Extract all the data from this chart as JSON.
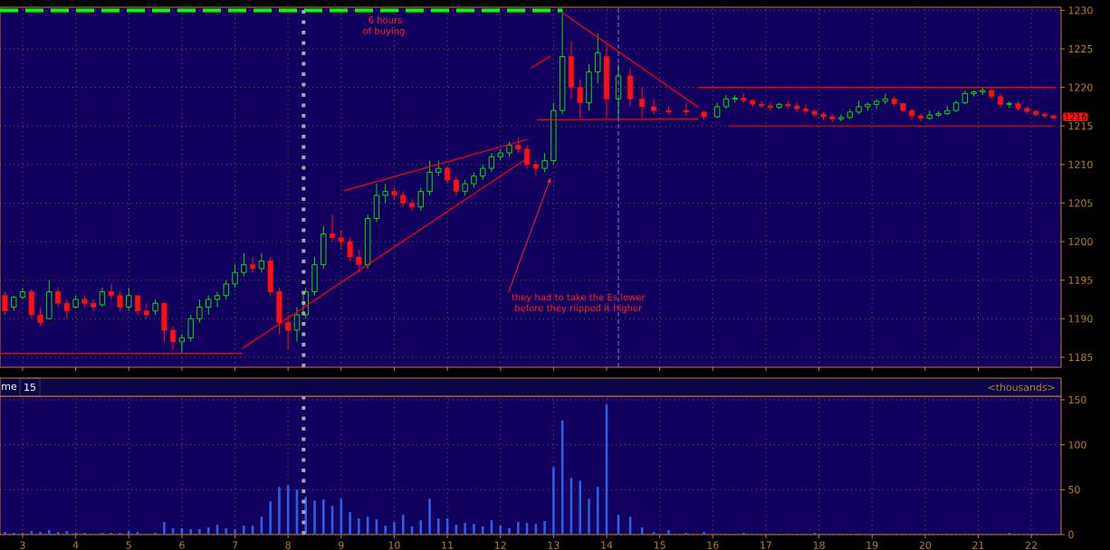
{
  "chart_data": [
    {
      "type": "candlestick",
      "x": [
        2.667,
        2.833,
        3,
        3.167,
        3.333,
        3.5,
        3.667,
        3.833,
        4,
        4.167,
        4.333,
        4.5,
        4.667,
        4.833,
        5,
        5.167,
        5.333,
        5.5,
        5.667,
        5.833,
        6,
        6.167,
        6.333,
        6.5,
        6.667,
        6.833,
        7,
        7.167,
        7.333,
        7.5,
        7.667,
        7.833,
        8,
        8.167,
        8.333,
        8.5,
        8.667,
        8.833,
        9,
        9.167,
        9.333,
        9.5,
        9.667,
        9.833,
        10,
        10.167,
        10.333,
        10.5,
        10.667,
        10.833,
        11,
        11.167,
        11.333,
        11.5,
        11.667,
        11.833,
        12,
        12.167,
        12.333,
        12.5,
        12.667,
        12.833,
        13,
        13.167,
        13.333,
        13.5,
        13.667,
        13.833,
        14,
        14.222,
        14.444,
        14.667,
        14.889,
        15.167,
        15.5,
        15.833,
        16.083,
        16.25,
        16.417,
        16.583,
        16.75,
        16.917,
        17.083,
        17.25,
        17.417,
        17.583,
        17.75,
        17.917,
        18.083,
        18.25,
        18.417,
        18.583,
        18.75,
        18.917,
        19.083,
        19.25,
        19.417,
        19.583,
        19.75,
        19.917,
        20.083,
        20.25,
        20.417,
        20.583,
        20.75,
        20.917,
        21.083,
        21.25,
        21.417,
        21.583,
        21.75,
        21.917,
        22.083,
        22.25,
        22.417
      ],
      "ohlc": [
        [
          1193,
          1193.5,
          1190.5,
          1191
        ],
        [
          1191.5,
          1193,
          1191,
          1192.8
        ],
        [
          1192.8,
          1194,
          1192.5,
          1193.5
        ],
        [
          1193.5,
          1193.8,
          1190,
          1190.5
        ],
        [
          1190.5,
          1191.5,
          1189,
          1189.5
        ],
        [
          1190,
          1195,
          1190,
          1193.5
        ],
        [
          1193.5,
          1194,
          1191.5,
          1192
        ],
        [
          1192,
          1192.5,
          1190,
          1191
        ],
        [
          1191.5,
          1193,
          1191.3,
          1192.5
        ],
        [
          1192.5,
          1193,
          1191.5,
          1192
        ],
        [
          1192,
          1192.5,
          1191,
          1191.5
        ],
        [
          1191.8,
          1194,
          1191.5,
          1193.5
        ],
        [
          1193.5,
          1194.5,
          1192.5,
          1193
        ],
        [
          1193,
          1193.5,
          1191,
          1191.5
        ],
        [
          1191.5,
          1194,
          1191,
          1193
        ],
        [
          1193,
          1193,
          1190.5,
          1191
        ],
        [
          1191,
          1192,
          1190,
          1190.5
        ],
        [
          1191,
          1192.5,
          1190.5,
          1192
        ],
        [
          1192,
          1192,
          1187,
          1188.5
        ],
        [
          1188.5,
          1189,
          1186,
          1187
        ],
        [
          1187,
          1188,
          1185.5,
          1187.5
        ],
        [
          1187.5,
          1190.5,
          1187,
          1190
        ],
        [
          1190,
          1192.5,
          1189.5,
          1191.5
        ],
        [
          1191.5,
          1193,
          1190.5,
          1192.5
        ],
        [
          1192.5,
          1193.5,
          1191.5,
          1193
        ],
        [
          1193,
          1195,
          1192.5,
          1194.5
        ],
        [
          1194.5,
          1197,
          1194,
          1196
        ],
        [
          1196,
          1198.5,
          1195.5,
          1197
        ],
        [
          1197,
          1198,
          1196,
          1196.5
        ],
        [
          1196.5,
          1198.5,
          1196,
          1197.5
        ],
        [
          1197.5,
          1198,
          1193,
          1193.5
        ],
        [
          1193.5,
          1194,
          1188,
          1189.5
        ],
        [
          1189.5,
          1190.5,
          1186,
          1188.5
        ],
        [
          1188.5,
          1191.5,
          1187,
          1190.5
        ],
        [
          1190.5,
          1194,
          1190,
          1193.5
        ],
        [
          1193.5,
          1198,
          1193,
          1197
        ],
        [
          1197,
          1202,
          1196.5,
          1201
        ],
        [
          1201,
          1203.5,
          1200,
          1200.5
        ],
        [
          1200.5,
          1201.5,
          1199,
          1200
        ],
        [
          1200,
          1200.5,
          1197.5,
          1198
        ],
        [
          1198,
          1199,
          1196,
          1197
        ],
        [
          1197,
          1203.5,
          1196.5,
          1203
        ],
        [
          1203,
          1207.5,
          1202.5,
          1206
        ],
        [
          1206,
          1207.5,
          1205,
          1206.5
        ],
        [
          1206.5,
          1207,
          1205.5,
          1206
        ],
        [
          1206,
          1206.5,
          1204.5,
          1205
        ],
        [
          1205,
          1205.5,
          1204,
          1204.5
        ],
        [
          1204.5,
          1207,
          1204,
          1206.5
        ],
        [
          1206.5,
          1210.5,
          1206,
          1209
        ],
        [
          1209,
          1210.5,
          1208.5,
          1209.5
        ],
        [
          1209.5,
          1209.8,
          1207.5,
          1208
        ],
        [
          1208,
          1208.5,
          1206,
          1206.5
        ],
        [
          1206.5,
          1208,
          1206,
          1207.5
        ],
        [
          1207.5,
          1209,
          1207,
          1208.5
        ],
        [
          1208.5,
          1210,
          1208,
          1209.5
        ],
        [
          1209.5,
          1211.5,
          1209,
          1211
        ],
        [
          1211,
          1212,
          1210.5,
          1211.5
        ],
        [
          1211.5,
          1213,
          1211,
          1212.5
        ],
        [
          1212.5,
          1213.5,
          1211.5,
          1212
        ],
        [
          1212,
          1212.5,
          1209.5,
          1210
        ],
        [
          1210,
          1210.5,
          1208.5,
          1209.5
        ],
        [
          1209.5,
          1211.5,
          1209,
          1210.5
        ],
        [
          1210.5,
          1218,
          1210,
          1217
        ],
        [
          1217,
          1230,
          1216.5,
          1224
        ],
        [
          1224,
          1226,
          1218.5,
          1220
        ],
        [
          1220,
          1221,
          1216,
          1218
        ],
        [
          1218,
          1223,
          1217,
          1222
        ],
        [
          1222,
          1227,
          1220.5,
          1224.5
        ],
        [
          1224,
          1225.5,
          1216,
          1218.5
        ],
        [
          1218.5,
          1223,
          1216,
          1221.5
        ],
        [
          1221.5,
          1222.5,
          1217.5,
          1218.5
        ],
        [
          1218.5,
          1220,
          1216,
          1217.5
        ],
        [
          1217.5,
          1218.5,
          1216.5,
          1217
        ],
        [
          1217,
          1217.5,
          1216.5,
          1216.8
        ],
        [
          1217,
          1218,
          1216.3,
          1216.8
        ],
        [
          1216.8,
          1217,
          1215.8,
          1216.2
        ],
        [
          1216.2,
          1218,
          1216,
          1217.5
        ],
        [
          1217.5,
          1219,
          1217.2,
          1218.5
        ],
        [
          1218.5,
          1219,
          1218,
          1218.6
        ],
        [
          1218.6,
          1219.2,
          1218,
          1218.3
        ],
        [
          1218.3,
          1218.5,
          1217.5,
          1217.8
        ],
        [
          1217.8,
          1218.2,
          1217.3,
          1217.6
        ],
        [
          1217.6,
          1218,
          1217,
          1217.4
        ],
        [
          1217.4,
          1218,
          1217.2,
          1217.8
        ],
        [
          1217.8,
          1218.3,
          1217.3,
          1217.6
        ],
        [
          1217.6,
          1218,
          1216.8,
          1217.2
        ],
        [
          1217.2,
          1217.8,
          1216.6,
          1216.9
        ],
        [
          1216.9,
          1217.2,
          1216.2,
          1216.5
        ],
        [
          1216.5,
          1216.8,
          1215.8,
          1216.2
        ],
        [
          1216.2,
          1216.5,
          1215.5,
          1215.9
        ],
        [
          1215.9,
          1216.5,
          1215.6,
          1216.1
        ],
        [
          1216.1,
          1217.2,
          1215.9,
          1216.8
        ],
        [
          1216.8,
          1218.3,
          1216.5,
          1217.5
        ],
        [
          1217.5,
          1218,
          1217,
          1217.8
        ],
        [
          1217.8,
          1218.5,
          1217.2,
          1218.2
        ],
        [
          1218.2,
          1219.2,
          1217.8,
          1218.5
        ],
        [
          1218.5,
          1218.8,
          1217.6,
          1217.9
        ],
        [
          1217.9,
          1218,
          1216.8,
          1217
        ],
        [
          1217,
          1217.2,
          1215.8,
          1216.3
        ],
        [
          1216.3,
          1216.6,
          1215.6,
          1216
        ],
        [
          1216,
          1217,
          1215.8,
          1216.4
        ],
        [
          1216.4,
          1216.9,
          1216.2,
          1216.6
        ],
        [
          1216.6,
          1217.6,
          1216.4,
          1217
        ],
        [
          1217,
          1218.3,
          1216.8,
          1218
        ],
        [
          1218,
          1219.6,
          1217.8,
          1219.2
        ],
        [
          1219.2,
          1219.6,
          1218.8,
          1219.4
        ],
        [
          1219.4,
          1220,
          1219,
          1219.6
        ],
        [
          1219.6,
          1219.8,
          1218.5,
          1218.8
        ],
        [
          1218.8,
          1219.2,
          1217.4,
          1217.8
        ],
        [
          1217.8,
          1218.2,
          1217.3,
          1217.9
        ],
        [
          1217.9,
          1218.2,
          1217,
          1217.3
        ],
        [
          1217.3,
          1217.5,
          1216.6,
          1216.9
        ],
        [
          1216.9,
          1217.1,
          1216.2,
          1216.5
        ],
        [
          1216.5,
          1216.8,
          1216,
          1216.3
        ],
        [
          1216.3,
          1216.5,
          1216,
          1216
        ]
      ],
      "xlim": [
        2.574,
        22.56
      ],
      "xticks": [
        3,
        4,
        5,
        6,
        7,
        8,
        9,
        10,
        11,
        12,
        13,
        14,
        15,
        16,
        17,
        18,
        19,
        20,
        21,
        22
      ],
      "ylim": [
        1183.7,
        1230.4
      ],
      "yticks": [
        1185,
        1190,
        1195,
        1200,
        1205,
        1210,
        1215,
        1220,
        1225,
        1230
      ],
      "grid": true,
      "tick_labels": "y",
      "series": [
        {
          "type": "line",
          "x": [
            2.574,
            13.167
          ],
          "values": [
            1230,
            1230
          ],
          "color": "#00ff00",
          "line_style": "dashed"
        },
        {
          "type": "line",
          "x": [
            2.574,
            7.133
          ],
          "values": [
            1185.5,
            1185.5
          ],
          "color": "#ff0000"
        },
        {
          "type": "line",
          "x": [
            7.133,
            12.458
          ],
          "values": [
            1186.1,
            1210.6
          ],
          "color": "#ff0000"
        },
        {
          "type": "line",
          "x": [
            9.05,
            12.525
          ],
          "values": [
            1206.6,
            1213.3
          ],
          "color": "#ff0000"
        },
        {
          "type": "line",
          "x": [
            12.575,
            12.95
          ],
          "values": [
            1222.5,
            1224.1
          ],
          "color": "#ff0000"
        },
        {
          "type": "line",
          "x": [
            13.167,
            15.733
          ],
          "values": [
            1229.7,
            1217.4
          ],
          "color": "#ff0000"
        },
        {
          "type": "line",
          "x": [
            12.692,
            15.733
          ],
          "values": [
            1215.8,
            1215.9
          ],
          "color": "#ff0000"
        },
        {
          "type": "line",
          "x": [
            15.733,
            22.458
          ],
          "values": [
            1220,
            1220
          ],
          "color": "#ff0000"
        },
        {
          "type": "line",
          "x": [
            16.308,
            22.425
          ],
          "values": [
            1215,
            1215
          ],
          "color": "#ff0000"
        }
      ],
      "ref_lines": [
        {
          "axis": "x",
          "value": 8.292,
          "color": "#a8a8a8",
          "line_style": "dotted"
        },
        {
          "axis": "x",
          "value": 14.222,
          "color": "#7878c8",
          "line_style": "dashed"
        }
      ],
      "annotations": [
        "6 hours of buying.",
        "they had to take the Es lower before they riipped it higher",
        {
          "text": "1216",
          "x": 22.417,
          "y": 1216
        }
      ]
    },
    {
      "type": "bar",
      "title": "me",
      "subtitle": "15",
      "x": [
        2.667,
        2.833,
        3,
        3.167,
        3.333,
        3.5,
        3.667,
        3.833,
        4,
        4.167,
        4.333,
        4.5,
        4.667,
        4.833,
        5,
        5.167,
        5.333,
        5.5,
        5.667,
        5.833,
        6,
        6.167,
        6.333,
        6.5,
        6.667,
        6.833,
        7,
        7.167,
        7.333,
        7.5,
        7.667,
        7.833,
        8,
        8.167,
        8.333,
        8.5,
        8.667,
        8.833,
        9,
        9.167,
        9.333,
        9.5,
        9.667,
        9.833,
        10,
        10.167,
        10.333,
        10.5,
        10.667,
        10.833,
        11,
        11.167,
        11.333,
        11.5,
        11.667,
        11.833,
        12,
        12.167,
        12.333,
        12.5,
        12.667,
        12.833,
        13,
        13.167,
        13.333,
        13.5,
        13.667,
        13.833,
        14,
        14.222,
        14.444,
        14.667,
        14.889,
        15.167,
        15.5,
        15.833,
        16.083,
        16.25,
        16.417,
        16.583,
        16.75,
        16.917,
        17.083,
        17.25,
        17.417,
        17.583,
        17.75,
        17.917,
        18.083,
        18.25,
        18.417,
        18.583,
        18.75,
        18.917,
        19.083,
        19.25,
        19.417,
        19.583,
        19.75,
        19.917,
        20.083,
        20.25,
        20.417,
        20.583,
        20.75,
        20.917,
        21.083,
        21.25,
        21.417,
        21.583,
        21.75,
        21.917,
        22.083,
        22.25,
        22.417
      ],
      "values": [
        3,
        2,
        2,
        4,
        3,
        5,
        3,
        4,
        2,
        2,
        1,
        2,
        2,
        2,
        4,
        3,
        1,
        2,
        14,
        7,
        7,
        6,
        6,
        8,
        11,
        7,
        6,
        10,
        10,
        20,
        37,
        53,
        55,
        50,
        42,
        38,
        39,
        32,
        40,
        25,
        18,
        20,
        17,
        10,
        14,
        22,
        9,
        16,
        40,
        18,
        18,
        11,
        13,
        12,
        9,
        16,
        10,
        7,
        14,
        13,
        12,
        15,
        75,
        127,
        63,
        60,
        40,
        53,
        145,
        22,
        20,
        8,
        3,
        5,
        2,
        3,
        1,
        1,
        1,
        2,
        1,
        1,
        1,
        1,
        1,
        1,
        1,
        2,
        1,
        1,
        1,
        1,
        1,
        1,
        1,
        1,
        1,
        1,
        1,
        1,
        1,
        1,
        1,
        1,
        1,
        1,
        1,
        1,
        1,
        2,
        1,
        1,
        1,
        1,
        1
      ],
      "color": "#2f5fe0",
      "xlim": [
        2.574,
        22.56
      ],
      "xticks": [
        3,
        4,
        5,
        6,
        7,
        8,
        9,
        10,
        11,
        12,
        13,
        14,
        15,
        16,
        17,
        18,
        19,
        20,
        21,
        22
      ],
      "ylim": [
        0,
        154
      ],
      "yticks": [
        0,
        50,
        100,
        150
      ],
      "grid": true,
      "ref_lines": [
        {
          "axis": "x",
          "value": 8.292,
          "color": "#a8a8a8",
          "line_style": "dotted"
        }
      ],
      "annotations": [
        "<thousands>"
      ]
    }
  ]
}
